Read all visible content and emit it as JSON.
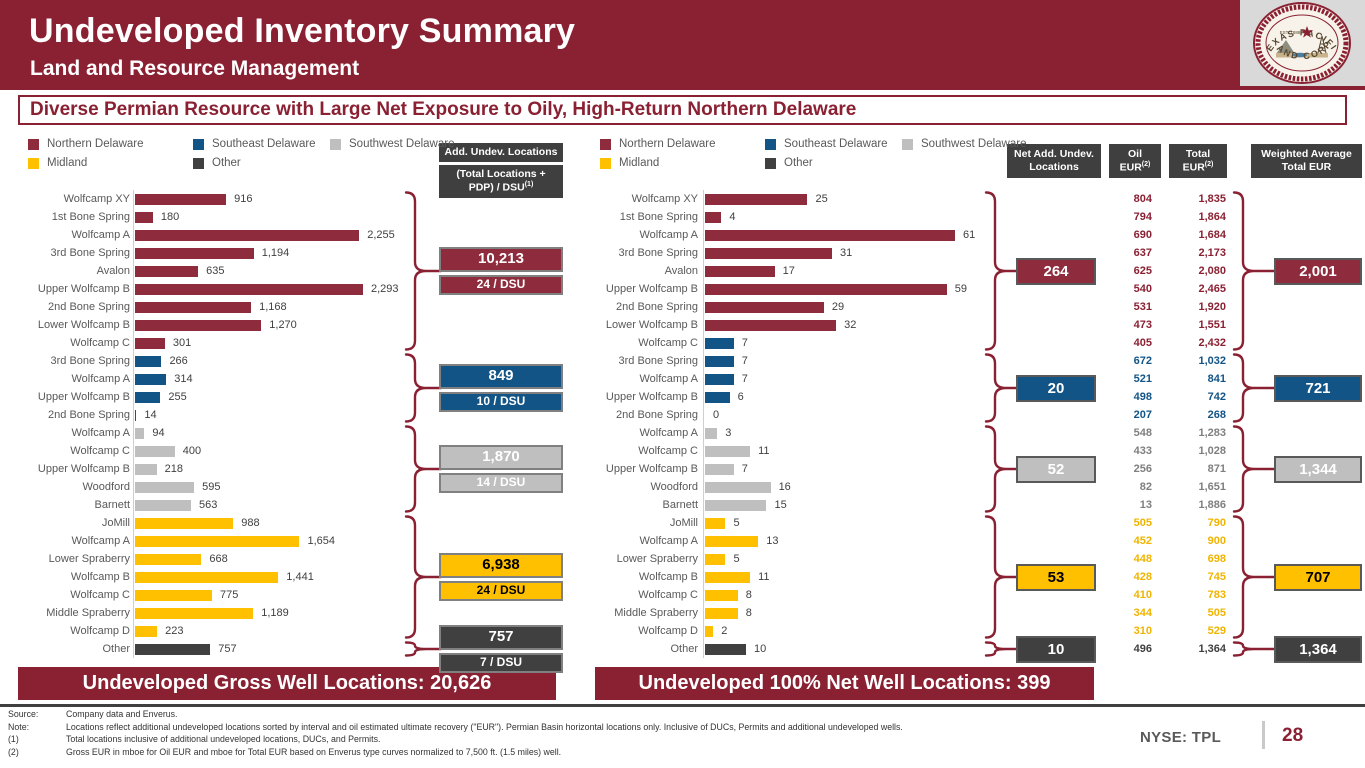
{
  "header": {
    "title": "Undeveloped Inventory Summary",
    "subtitle": "Land and Resource Management"
  },
  "logo": {
    "arc_top": "TEXAS PACIFIC",
    "arc_bottom": "LAND CORP",
    "est": "EST. 1888"
  },
  "banner": {
    "text": "Diverse Permian Resource with Large Net Exposure to Oily, High-Return Northern Delaware"
  },
  "colors": {
    "maroon_bar": "#8E2C3D",
    "maroon_dark": "#8A2133",
    "blue": "#135486",
    "silver": "#BFBFBF",
    "silver_text": "#7F7F7F",
    "gold": "#FFC000",
    "dark": "#404040",
    "header_box": "#3F3F3F"
  },
  "legend": {
    "items": [
      {
        "label": "Northern Delaware",
        "color_key": "maroon"
      },
      {
        "label": "Southeast Delaware",
        "color_key": "blue"
      },
      {
        "label": "Southwest Delaware",
        "color_key": "silver"
      },
      {
        "label": "Midland",
        "color_key": "gold"
      },
      {
        "label": "Other",
        "color_key": "dark"
      }
    ]
  },
  "chart_data": [
    {
      "type": "bar",
      "title": "Add. Undev. Locations by interval (gross)",
      "banner": "Undeveloped Gross Well Locations: 20,626",
      "xlim": [
        0,
        2293
      ],
      "column_header": {
        "line1": "Add. Undev. Locations",
        "l1": "(Total Locations +",
        "l2": "PDP) / DSU",
        "sup": "(1)"
      },
      "groups": [
        {
          "region": "Northern Delaware",
          "color_key": "maroon",
          "summary_locations": "10,213",
          "summary_dsu": "24 / DSU",
          "rows": [
            {
              "label": "Wolfcamp XY",
              "value": 916
            },
            {
              "label": "1st Bone Spring",
              "value": 180
            },
            {
              "label": "Wolfcamp A",
              "value": 2255
            },
            {
              "label": "3rd Bone Spring",
              "value": 1194
            },
            {
              "label": "Avalon",
              "value": 635
            },
            {
              "label": "Upper Wolfcamp B",
              "value": 2293
            },
            {
              "label": "2nd Bone Spring",
              "value": 1168
            },
            {
              "label": "Lower Wolfcamp B",
              "value": 1270
            },
            {
              "label": "Wolfcamp C",
              "value": 301
            }
          ]
        },
        {
          "region": "Southeast Delaware",
          "color_key": "blue",
          "summary_locations": "849",
          "summary_dsu": "10 / DSU",
          "rows": [
            {
              "label": "3rd Bone Spring",
              "value": 266
            },
            {
              "label": "Wolfcamp A",
              "value": 314
            },
            {
              "label": "Upper Wolfcamp B",
              "value": 255
            },
            {
              "label": "2nd Bone Spring",
              "value": 14
            }
          ]
        },
        {
          "region": "Southwest Delaware",
          "color_key": "silver",
          "summary_locations": "1,870",
          "summary_dsu": "14 / DSU",
          "rows": [
            {
              "label": "Wolfcamp A",
              "value": 94
            },
            {
              "label": "Wolfcamp C",
              "value": 400
            },
            {
              "label": "Upper Wolfcamp B",
              "value": 218
            },
            {
              "label": "Woodford",
              "value": 595
            },
            {
              "label": "Barnett",
              "value": 563
            }
          ]
        },
        {
          "region": "Midland",
          "color_key": "gold",
          "summary_locations": "6,938",
          "summary_dsu": "24 / DSU",
          "rows": [
            {
              "label": "JoMill",
              "value": 988
            },
            {
              "label": "Wolfcamp A",
              "value": 1654
            },
            {
              "label": "Lower Spraberry",
              "value": 668
            },
            {
              "label": "Wolfcamp B",
              "value": 1441
            },
            {
              "label": "Wolfcamp C",
              "value": 775
            },
            {
              "label": "Middle Spraberry",
              "value": 1189
            },
            {
              "label": "Wolfcamp D",
              "value": 223
            }
          ]
        },
        {
          "region": "Other",
          "color_key": "dark",
          "summary_locations": "757",
          "summary_dsu": "7 / DSU",
          "rows": [
            {
              "label": "Other",
              "value": 757
            }
          ]
        }
      ]
    },
    {
      "type": "bar",
      "title": "Net Add. Undev. Locations with EUR",
      "banner": "Undeveloped 100% Net Well Locations: 399",
      "xlim": [
        0,
        61
      ],
      "column_headers": {
        "net": {
          "l1": "Net Add. Undev.",
          "l2": "Locations"
        },
        "oil": {
          "l1": "Oil",
          "l2": "EUR",
          "sup": "(2)"
        },
        "total": {
          "l1": "Total",
          "l2": "EUR",
          "sup": "(2)"
        },
        "weighted": {
          "l1": "Weighted Average",
          "l2": "Total EUR"
        }
      },
      "groups": [
        {
          "region": "Northern Delaware",
          "color_key": "maroon",
          "net_total": "264",
          "weighted_eur": "2,001",
          "rows": [
            {
              "label": "Wolfcamp XY",
              "value": 25,
              "oil": "804",
              "total": "1,835"
            },
            {
              "label": "1st Bone Spring",
              "value": 4,
              "oil": "794",
              "total": "1,864"
            },
            {
              "label": "Wolfcamp A",
              "value": 61,
              "oil": "690",
              "total": "1,684"
            },
            {
              "label": "3rd Bone Spring",
              "value": 31,
              "oil": "637",
              "total": "2,173"
            },
            {
              "label": "Avalon",
              "value": 17,
              "oil": "625",
              "total": "2,080"
            },
            {
              "label": "Upper Wolfcamp B",
              "value": 59,
              "oil": "540",
              "total": "2,465"
            },
            {
              "label": "2nd Bone Spring",
              "value": 29,
              "oil": "531",
              "total": "1,920"
            },
            {
              "label": "Lower Wolfcamp B",
              "value": 32,
              "oil": "473",
              "total": "1,551"
            },
            {
              "label": "Wolfcamp C",
              "value": 7,
              "oil": "405",
              "total": "2,432",
              "bar_color": "blue"
            }
          ]
        },
        {
          "region": "Southeast Delaware",
          "color_key": "blue",
          "net_total": "20",
          "weighted_eur": "721",
          "rows": [
            {
              "label": "3rd Bone Spring",
              "value": 7,
              "oil": "672",
              "total": "1,032"
            },
            {
              "label": "Wolfcamp A",
              "value": 7,
              "oil": "521",
              "total": "841"
            },
            {
              "label": "Upper Wolfcamp B",
              "value": 6,
              "oil": "498",
              "total": "742"
            },
            {
              "label": "2nd Bone Spring",
              "value": 0,
              "oil": "207",
              "total": "268"
            }
          ]
        },
        {
          "region": "Southwest Delaware",
          "color_key": "silver",
          "net_total": "52",
          "weighted_eur": "1,344",
          "rows": [
            {
              "label": "Wolfcamp A",
              "value": 3,
              "oil": "548",
              "total": "1,283"
            },
            {
              "label": "Wolfcamp C",
              "value": 11,
              "oil": "433",
              "total": "1,028"
            },
            {
              "label": "Upper Wolfcamp B",
              "value": 7,
              "oil": "256",
              "total": "871"
            },
            {
              "label": "Woodford",
              "value": 16,
              "oil": "82",
              "total": "1,651"
            },
            {
              "label": "Barnett",
              "value": 15,
              "oil": "13",
              "total": "1,886"
            }
          ]
        },
        {
          "region": "Midland",
          "color_key": "gold",
          "net_total": "53",
          "weighted_eur": "707",
          "rows": [
            {
              "label": "JoMill",
              "value": 5,
              "oil": "505",
              "total": "790"
            },
            {
              "label": "Wolfcamp A",
              "value": 13,
              "oil": "452",
              "total": "900"
            },
            {
              "label": "Lower Spraberry",
              "value": 5,
              "oil": "448",
              "total": "698"
            },
            {
              "label": "Wolfcamp B",
              "value": 11,
              "oil": "428",
              "total": "745"
            },
            {
              "label": "Wolfcamp C",
              "value": 8,
              "oil": "410",
              "total": "783"
            },
            {
              "label": "Middle Spraberry",
              "value": 8,
              "oil": "344",
              "total": "505"
            },
            {
              "label": "Wolfcamp D",
              "value": 2,
              "oil": "310",
              "total": "529"
            }
          ]
        },
        {
          "region": "Other",
          "color_key": "dark",
          "net_total": "10",
          "weighted_eur": "1,364",
          "rows": [
            {
              "label": "Other",
              "value": 10,
              "oil": "496",
              "total": "1,364"
            }
          ]
        }
      ]
    }
  ],
  "footer": {
    "notes": [
      {
        "label": "Source:",
        "text": "Company data and Enverus."
      },
      {
        "label": "Note:",
        "text": "Locations reflect additional undeveloped locations sorted by interval and oil estimated ultimate recovery (\"EUR\"). Permian Basin horizontal locations only. Inclusive of DUCs, Permits and additional undeveloped wells."
      },
      {
        "label": "(1)",
        "text": "Total locations inclusive of additional undeveloped locations, DUCs, and Permits."
      },
      {
        "label": "(2)",
        "text": "Gross EUR in mboe for Oil EUR and mboe for Total EUR based on Enverus type curves normalized to 7,500 ft. (1.5 miles) well."
      }
    ],
    "ticker": "NYSE: TPL",
    "page": "28"
  }
}
